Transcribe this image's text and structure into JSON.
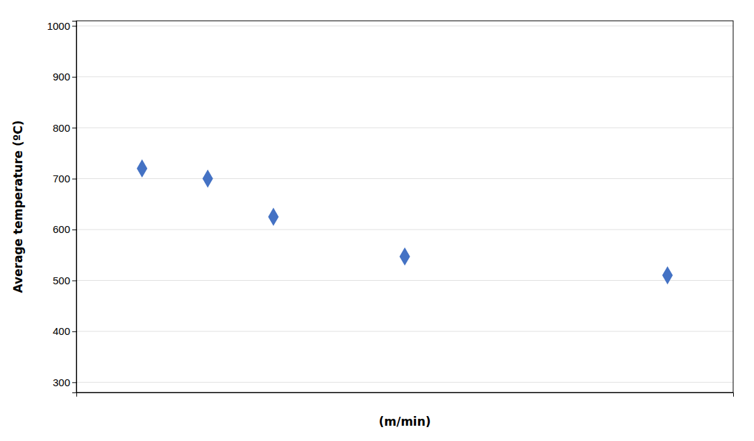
{
  "chart_data": {
    "type": "scatter",
    "x": [
      1,
      2,
      3,
      5,
      9
    ],
    "values": [
      720,
      700,
      625,
      547,
      510
    ],
    "color": "#4472C4",
    "marker": "diamond",
    "xlabel": "(m/min)",
    "ylabel": "Average temperature (ºC)",
    "xlim": [
      0,
      10
    ],
    "ylim": [
      280,
      1010
    ],
    "xticks": [],
    "yticks": [
      300,
      400,
      500,
      600,
      700,
      800,
      900,
      1000
    ],
    "grid": "y",
    "tick_labels": "y"
  }
}
